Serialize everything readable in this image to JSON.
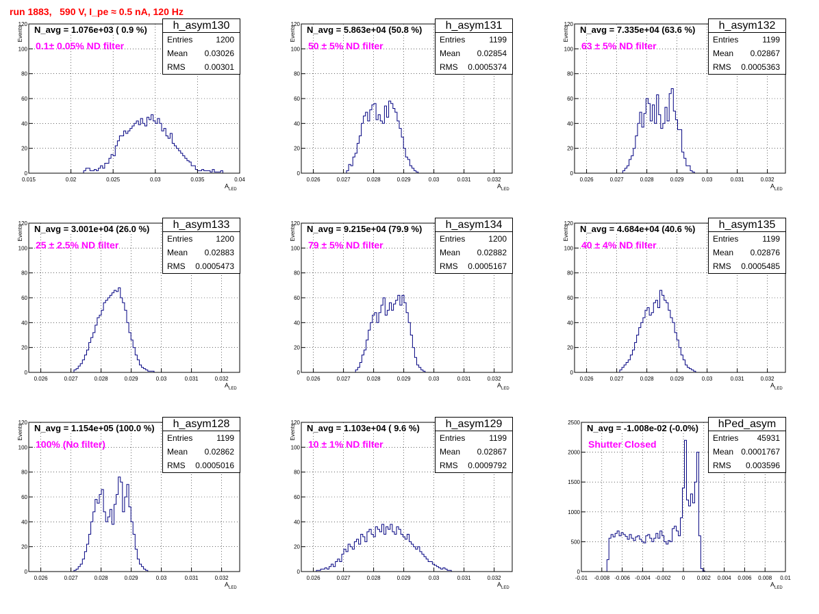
{
  "title": "run 1883,   590 V, I_pe ≈ 0.5 nA, 120 Hz",
  "colors": {
    "title": "#ff0000",
    "note": "#ff00ff",
    "hist": "#000080",
    "grid": "#000000"
  },
  "chart_data": [
    {
      "type": "histogram",
      "name": "h_asym130",
      "n_avg_label": "N_avg = 1.076e+03 ( 0.9 %)",
      "note": "0.1± 0.05% ND filter",
      "stats": {
        "entries": "1200",
        "mean": "0.03026",
        "rms": "0.00301"
      },
      "xlim": [
        0.015,
        0.04
      ],
      "ylim": [
        0,
        120
      ],
      "xticks": [
        "0.015",
        "0.02",
        "0.025",
        "0.03",
        "0.035",
        "0.04"
      ],
      "yticks": [
        "0",
        "20",
        "40",
        "60",
        "80",
        "100",
        "120"
      ],
      "xlabel": "A",
      "xlabel_sub": "LED",
      "ylabel": "Events",
      "grid": true,
      "bin_start": 0.0215,
      "bin_width": 0.00025,
      "counts": [
        2,
        4,
        4,
        2,
        2,
        3,
        2,
        4,
        6,
        4,
        8,
        8,
        12,
        15,
        14,
        22,
        26,
        30,
        30,
        34,
        32,
        34,
        36,
        38,
        40,
        42,
        39,
        44,
        40,
        38,
        45,
        43,
        47,
        42,
        40,
        44,
        40,
        34,
        36,
        30,
        28,
        32,
        24,
        22,
        20,
        18,
        16,
        14,
        12,
        10,
        9,
        6,
        6,
        3,
        2,
        2,
        3,
        2,
        2,
        2,
        1,
        3,
        1,
        1,
        1,
        2
      ]
    },
    {
      "type": "histogram",
      "name": "h_asym131",
      "n_avg_label": "N_avg = 5.863e+04 (50.8 %)",
      "note": "50 ± 5% ND filter",
      "stats": {
        "entries": "1199",
        "mean": "0.02854",
        "rms": "0.0005374"
      },
      "xlim": [
        0.0256,
        0.0326
      ],
      "ylim": [
        0,
        120
      ],
      "xticks": [
        "0.026",
        "0.027",
        "0.028",
        "0.029",
        "0.03",
        "0.031",
        "0.032"
      ],
      "yticks": [
        "0",
        "20",
        "40",
        "60",
        "80",
        "100",
        "120"
      ],
      "xlabel": "A",
      "xlabel_sub": "LED",
      "ylabel": "Events",
      "grid": true,
      "bin_start": 0.0271,
      "bin_width": 7e-05,
      "counts": [
        2,
        7,
        6,
        13,
        16,
        24,
        30,
        40,
        46,
        49,
        42,
        51,
        55,
        56,
        43,
        47,
        42,
        40,
        54,
        45,
        58,
        56,
        52,
        49,
        42,
        36,
        29,
        20,
        13,
        11,
        6,
        4,
        2,
        1
      ]
    },
    {
      "type": "histogram",
      "name": "h_asym132",
      "n_avg_label": "N_avg = 7.335e+04 (63.6 %)",
      "note": "63 ± 5% ND filter",
      "stats": {
        "entries": "1199",
        "mean": "0.02867",
        "rms": "0.0005363"
      },
      "xlim": [
        0.0256,
        0.0326
      ],
      "ylim": [
        0,
        120
      ],
      "xticks": [
        "0.026",
        "0.027",
        "0.028",
        "0.029",
        "0.03",
        "0.031",
        "0.032"
      ],
      "yticks": [
        "0",
        "20",
        "40",
        "60",
        "80",
        "100",
        "120"
      ],
      "xlabel": "A",
      "xlabel_sub": "LED",
      "ylabel": "Events",
      "grid": true,
      "bin_start": 0.0272,
      "bin_width": 7e-05,
      "counts": [
        2,
        4,
        6,
        11,
        14,
        20,
        30,
        40,
        49,
        37,
        48,
        60,
        56,
        42,
        55,
        40,
        63,
        47,
        36,
        40,
        53,
        42,
        64,
        68,
        50,
        43,
        35,
        35,
        17,
        12,
        6,
        6,
        2,
        1
      ]
    },
    {
      "type": "histogram",
      "name": "h_asym133",
      "n_avg_label": "N_avg = 3.001e+04 (26.0 %)",
      "note": "25 ± 2.5% ND filter",
      "stats": {
        "entries": "1200",
        "mean": "0.02883",
        "rms": "0.0005473"
      },
      "xlim": [
        0.0256,
        0.0326
      ],
      "ylim": [
        0,
        120
      ],
      "xticks": [
        "0.026",
        "0.027",
        "0.028",
        "0.029",
        "0.03",
        "0.031",
        "0.032"
      ],
      "yticks": [
        "0",
        "20",
        "40",
        "60",
        "80",
        "100",
        "120"
      ],
      "xlabel": "A",
      "xlabel_sub": "LED",
      "ylabel": "Events",
      "grid": true,
      "bin_start": 0.0271,
      "bin_width": 7e-05,
      "counts": [
        2,
        3,
        5,
        7,
        10,
        14,
        18,
        24,
        28,
        32,
        38,
        44,
        46,
        50,
        56,
        58,
        60,
        62,
        64,
        66,
        65,
        68,
        60,
        56,
        50,
        40,
        32,
        26,
        20,
        14,
        10,
        6,
        4,
        3,
        2,
        1,
        1,
        1
      ]
    },
    {
      "type": "histogram",
      "name": "h_asym134",
      "n_avg_label": "N_avg = 9.215e+04 (79.9 %)",
      "note": "79 ± 5% ND filter",
      "stats": {
        "entries": "1200",
        "mean": "0.02882",
        "rms": "0.0005167"
      },
      "xlim": [
        0.0256,
        0.0326
      ],
      "ylim": [
        0,
        120
      ],
      "xticks": [
        "0.026",
        "0.027",
        "0.028",
        "0.029",
        "0.03",
        "0.031",
        "0.032"
      ],
      "yticks": [
        "0",
        "20",
        "40",
        "60",
        "80",
        "100",
        "120"
      ],
      "xlabel": "A",
      "xlabel_sub": "LED",
      "ylabel": "Events",
      "grid": true,
      "bin_start": 0.0274,
      "bin_width": 7e-05,
      "counts": [
        2,
        4,
        8,
        14,
        18,
        26,
        34,
        40,
        46,
        48,
        40,
        48,
        54,
        60,
        46,
        50,
        56,
        50,
        55,
        58,
        62,
        54,
        62,
        56,
        48,
        40,
        30,
        20,
        12,
        6,
        4,
        2,
        1
      ]
    },
    {
      "type": "histogram",
      "name": "h_asym135",
      "n_avg_label": "N_avg = 4.684e+04 (40.6 %)",
      "note": "40 ± 4% ND filter",
      "stats": {
        "entries": "1199",
        "mean": "0.02876",
        "rms": "0.0005485"
      },
      "xlim": [
        0.0256,
        0.0326
      ],
      "ylim": [
        0,
        120
      ],
      "xticks": [
        "0.026",
        "0.027",
        "0.028",
        "0.029",
        "0.03",
        "0.031",
        "0.032"
      ],
      "yticks": [
        "0",
        "20",
        "40",
        "60",
        "80",
        "100",
        "120"
      ],
      "xlabel": "A",
      "xlabel_sub": "LED",
      "ylabel": "Events",
      "grid": true,
      "bin_start": 0.0271,
      "bin_width": 7e-05,
      "counts": [
        2,
        4,
        6,
        8,
        10,
        14,
        18,
        24,
        30,
        36,
        40,
        44,
        50,
        52,
        46,
        48,
        56,
        58,
        52,
        66,
        62,
        58,
        56,
        50,
        44,
        40,
        32,
        26,
        20,
        14,
        10,
        6,
        4,
        3,
        2,
        1
      ]
    },
    {
      "type": "histogram",
      "name": "h_asym128",
      "n_avg_label": "N_avg = 1.154e+05 (100.0 %)",
      "note": "100% (No filter)",
      "stats": {
        "entries": "1199",
        "mean": "0.02862",
        "rms": "0.0005016"
      },
      "xlim": [
        0.0256,
        0.0326
      ],
      "ylim": [
        0,
        120
      ],
      "xticks": [
        "0.026",
        "0.027",
        "0.028",
        "0.029",
        "0.03",
        "0.031",
        "0.032"
      ],
      "yticks": [
        "0",
        "20",
        "40",
        "60",
        "80",
        "100",
        "120"
      ],
      "xlabel": "A",
      "xlabel_sub": "LED",
      "ylabel": "Events",
      "grid": true,
      "bin_start": 0.0271,
      "bin_width": 7e-05,
      "counts": [
        1,
        2,
        4,
        6,
        10,
        16,
        22,
        30,
        40,
        48,
        58,
        55,
        62,
        66,
        48,
        40,
        44,
        50,
        38,
        54,
        62,
        76,
        72,
        48,
        60,
        70,
        52,
        40,
        30,
        18,
        10,
        6,
        4,
        2,
        1
      ]
    },
    {
      "type": "histogram",
      "name": "h_asym129",
      "n_avg_label": "N_avg = 1.103e+04 ( 9.6 %)",
      "note": "10 ± 1% ND filter",
      "stats": {
        "entries": "1199",
        "mean": "0.02867",
        "rms": "0.0009792"
      },
      "xlim": [
        0.0256,
        0.0326
      ],
      "ylim": [
        0,
        120
      ],
      "xticks": [
        "0.026",
        "0.027",
        "0.028",
        "0.029",
        "0.03",
        "0.031",
        "0.032"
      ],
      "yticks": [
        "0",
        "20",
        "40",
        "60",
        "80",
        "100",
        "120"
      ],
      "xlabel": "A",
      "xlabel_sub": "LED",
      "ylabel": "Events",
      "grid": true,
      "bin_start": 0.0261,
      "bin_width": 7e-05,
      "counts": [
        1,
        1,
        2,
        2,
        3,
        2,
        4,
        6,
        4,
        8,
        10,
        8,
        14,
        18,
        16,
        22,
        20,
        18,
        24,
        26,
        22,
        30,
        28,
        24,
        32,
        34,
        30,
        28,
        36,
        34,
        32,
        38,
        30,
        36,
        34,
        38,
        32,
        30,
        36,
        34,
        30,
        28,
        26,
        30,
        24,
        22,
        20,
        18,
        20,
        16,
        14,
        12,
        10,
        8,
        8,
        6,
        5,
        4,
        3,
        2,
        3,
        2,
        1,
        1
      ]
    },
    {
      "type": "histogram",
      "name": "hPed_asym",
      "n_avg_label": "N_avg = -1.008e-02 (-0.0%)",
      "note": "Shutter Closed",
      "stats": {
        "entries": "45931",
        "mean": "0.0001767",
        "rms": "0.003596"
      },
      "xlim": [
        -0.01,
        0.01
      ],
      "ylim": [
        0,
        2500
      ],
      "xticks": [
        "-0.01",
        "-0.008",
        "-0.006",
        "-0.004",
        "-0.002",
        "0",
        "0.002",
        "0.004",
        "0.006",
        "0.008",
        "0.01"
      ],
      "yticks": [
        "0",
        "500",
        "1000",
        "1500",
        "2000",
        "2500"
      ],
      "xlabel": "A",
      "xlabel_sub": "LED",
      "ylabel": "",
      "grid": true,
      "bin_start": -0.0075,
      "bin_width": 0.0002,
      "counts": [
        200,
        560,
        620,
        580,
        640,
        680,
        600,
        650,
        620,
        590,
        540,
        620,
        560,
        520,
        580,
        600,
        540,
        500,
        480,
        600,
        620,
        560,
        500,
        560,
        640,
        560,
        680,
        600,
        500,
        460,
        520,
        500,
        720,
        760,
        680,
        600,
        900,
        1400,
        2200,
        1200,
        1100,
        1300,
        1150,
        1500,
        2000,
        600,
        50,
        10
      ]
    }
  ]
}
